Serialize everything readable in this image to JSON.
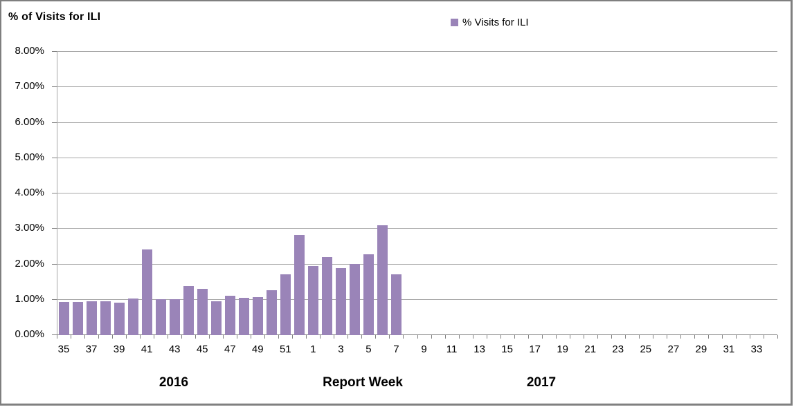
{
  "title": "% of Visits for ILI",
  "legend": {
    "label": "% Visits for ILI"
  },
  "axis": {
    "x_title": "Report Week",
    "year_left": "2016",
    "year_right": "2017"
  },
  "colors": {
    "bar": "#9A84B8",
    "gridline": "#A6A6A6",
    "axis_line": "#808080",
    "frame_border": "#7F7F7F",
    "text": "#000000"
  },
  "chart_data": {
    "type": "bar",
    "title": "% of Visits for ILI",
    "xlabel": "Report Week",
    "ylabel": "% of Visits for ILI",
    "legend_entries": [
      "% Visits for ILI"
    ],
    "legend_position": "top",
    "grid": true,
    "ylim": [
      0,
      8
    ],
    "y_tick_step": 1,
    "y_tick_labels": [
      "0.00%",
      "1.00%",
      "2.00%",
      "3.00%",
      "4.00%",
      "5.00%",
      "6.00%",
      "7.00%",
      "8.00%"
    ],
    "x_label_every": 2,
    "year_groups": [
      {
        "year": "2016",
        "weeks_start": 35,
        "weeks_end": 52
      },
      {
        "year": "2017",
        "weeks_start": 1,
        "weeks_end": 34
      }
    ],
    "categories": [
      35,
      36,
      37,
      38,
      39,
      40,
      41,
      42,
      43,
      44,
      45,
      46,
      47,
      48,
      49,
      50,
      51,
      52,
      1,
      2,
      3,
      4,
      5,
      6,
      7,
      8,
      9,
      10,
      11,
      12,
      13,
      14,
      15,
      16,
      17,
      18,
      19,
      20,
      21,
      22,
      23,
      24,
      25,
      26,
      27,
      28,
      29,
      30,
      31,
      32,
      33,
      34
    ],
    "series": [
      {
        "name": "% Visits for ILI",
        "values": [
          0.94,
          0.94,
          0.96,
          0.95,
          0.92,
          1.03,
          2.41,
          1.02,
          1.01,
          1.38,
          1.3,
          0.95,
          1.11,
          1.06,
          1.08,
          1.27,
          1.71,
          2.82,
          1.95,
          2.21,
          1.9,
          2.01,
          2.29,
          3.1,
          1.72,
          null,
          null,
          null,
          null,
          null,
          null,
          null,
          null,
          null,
          null,
          null,
          null,
          null,
          null,
          null,
          null,
          null,
          null,
          null,
          null,
          null,
          null,
          null,
          null,
          null,
          null,
          null
        ]
      }
    ]
  }
}
